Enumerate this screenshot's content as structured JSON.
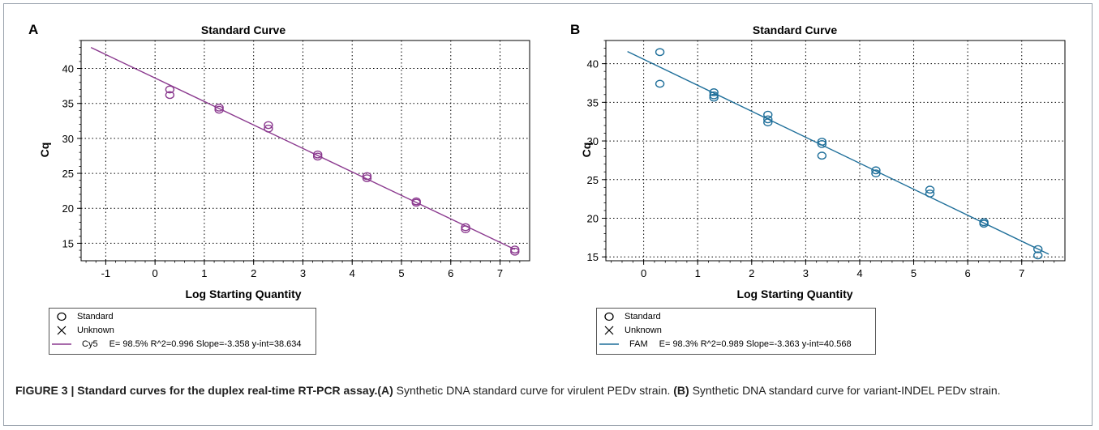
{
  "caption": {
    "label": "FIGURE 3 | Standard curves for the duplex real-time RT-PCR assay.",
    "a_ref": "(A)",
    "a_text": " Synthetic DNA standard curve for virulent PEDv strain. ",
    "b_ref": "(B)",
    "b_text": " Synthetic DNA standard curve for variant-INDEL PEDv strain."
  },
  "chart_data": [
    {
      "panel": "A",
      "type": "scatter",
      "title": "Standard Curve",
      "xlabel": "Log Starting Quantity",
      "ylabel": "Cq",
      "xlim": [
        -1.5,
        7.6
      ],
      "ylim": [
        12.5,
        44
      ],
      "xticks": [
        -1,
        0,
        1,
        2,
        3,
        4,
        5,
        6,
        7
      ],
      "yticks": [
        15,
        20,
        25,
        30,
        35,
        40
      ],
      "grid": true,
      "color": "#8b3a8f",
      "points": [
        [
          0.3,
          37.0
        ],
        [
          0.3,
          36.2
        ],
        [
          1.3,
          34.4
        ],
        [
          1.3,
          34.1
        ],
        [
          2.3,
          31.9
        ],
        [
          2.3,
          31.4
        ],
        [
          3.3,
          27.7
        ],
        [
          3.3,
          27.4
        ],
        [
          4.3,
          24.6
        ],
        [
          4.3,
          24.3
        ],
        [
          5.3,
          21.0
        ],
        [
          5.3,
          20.8
        ],
        [
          6.3,
          17.3
        ],
        [
          6.3,
          17.0
        ],
        [
          7.3,
          14.1
        ],
        [
          7.3,
          13.8
        ]
      ],
      "fit": {
        "x_range": [
          -1.3,
          7.3
        ],
        "slope": -3.358,
        "intercept": 38.634
      },
      "legend": {
        "entries": [
          {
            "symbol": "circle",
            "label": "Standard"
          },
          {
            "symbol": "cross",
            "label": "Unknown"
          },
          {
            "symbol": "line",
            "label": "Cy5",
            "stats": "E= 98.5% R^2=0.996 Slope=-3.358 y-int=38.634"
          }
        ]
      }
    },
    {
      "panel": "B",
      "type": "scatter",
      "title": "Standard Curve",
      "xlabel": "Log Starting Quantity",
      "ylabel": "Cq",
      "xlim": [
        -0.7,
        7.8
      ],
      "ylim": [
        14.5,
        43
      ],
      "xticks": [
        0,
        1,
        2,
        3,
        4,
        5,
        6,
        7
      ],
      "yticks": [
        15,
        20,
        25,
        30,
        35,
        40
      ],
      "grid": true,
      "color": "#1f6f9a",
      "points": [
        [
          0.3,
          41.5
        ],
        [
          0.3,
          37.4
        ],
        [
          1.3,
          36.3
        ],
        [
          1.3,
          35.9
        ],
        [
          1.3,
          35.6
        ],
        [
          2.3,
          33.4
        ],
        [
          2.3,
          32.8
        ],
        [
          2.3,
          32.4
        ],
        [
          3.3,
          29.9
        ],
        [
          3.3,
          29.6
        ],
        [
          3.3,
          28.1
        ],
        [
          4.3,
          26.2
        ],
        [
          4.3,
          25.8
        ],
        [
          5.3,
          23.7
        ],
        [
          5.3,
          23.2
        ],
        [
          6.3,
          19.5
        ],
        [
          6.3,
          19.3
        ],
        [
          7.3,
          16.0
        ],
        [
          7.3,
          15.2
        ]
      ],
      "fit": {
        "x_range": [
          -0.3,
          7.5
        ],
        "slope": -3.363,
        "intercept": 40.568
      },
      "legend": {
        "entries": [
          {
            "symbol": "circle",
            "label": "Standard"
          },
          {
            "symbol": "cross",
            "label": "Unknown"
          },
          {
            "symbol": "line",
            "label": "FAM",
            "stats": "E= 98.3% R^2=0.989 Slope=-3.363 y-int=40.568"
          }
        ]
      }
    }
  ]
}
